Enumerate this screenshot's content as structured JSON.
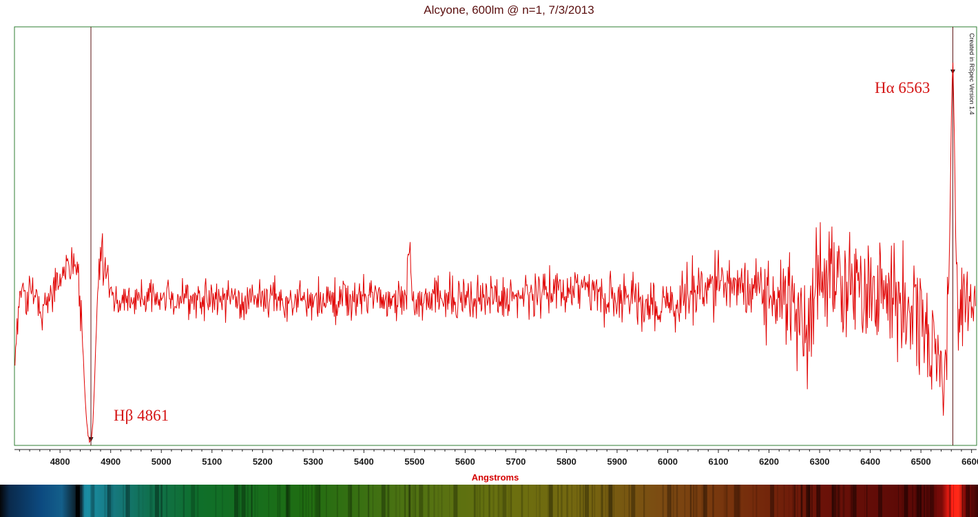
{
  "chart_data": {
    "type": "line",
    "title": "Alcyone, 600lm @ n=1, 7/3/2013",
    "xlabel": "Angstroms",
    "xlim": [
      4710,
      6610
    ],
    "ylim": [
      0,
      1
    ],
    "x_ticks": [
      4800,
      4900,
      5000,
      5100,
      5200,
      5300,
      5400,
      5500,
      5600,
      5700,
      5800,
      5900,
      6000,
      6100,
      6200,
      6300,
      6400,
      6500,
      6600
    ],
    "y_ticks_shown": false,
    "grid": false,
    "series": [
      {
        "color": "#e00000",
        "baseline_level": 0.355,
        "x": [
          4712,
          4720,
          4735,
          4750,
          4765,
          4780,
          4795,
          4810,
          4825,
          4835,
          4842,
          4848,
          4852,
          4856,
          4859,
          4861,
          4863,
          4866,
          4870,
          4874,
          4878,
          4882,
          4886,
          4890,
          4895,
          4900,
          4910,
          4925,
          4950,
          5000,
          5100,
          5200,
          5300,
          5400,
          5480,
          5487,
          5490,
          5494,
          5500,
          5600,
          5700,
          5800,
          5820,
          5900,
          6000,
          6050,
          6100,
          6150,
          6200,
          6262,
          6270,
          6280,
          6300,
          6350,
          6400,
          6450,
          6500,
          6520,
          6540,
          6548,
          6553,
          6557,
          6560,
          6563,
          6566,
          6569,
          6573,
          6578,
          6585,
          6595,
          6605
        ],
        "y": [
          0.22,
          0.36,
          0.35,
          0.37,
          0.32,
          0.36,
          0.39,
          0.42,
          0.44,
          0.42,
          0.3,
          0.15,
          0.06,
          0.02,
          0.01,
          0.01,
          0.02,
          0.08,
          0.22,
          0.36,
          0.42,
          0.47,
          0.42,
          0.39,
          0.39,
          0.37,
          0.35,
          0.34,
          0.35,
          0.35,
          0.35,
          0.35,
          0.34,
          0.35,
          0.35,
          0.4,
          0.45,
          0.39,
          0.36,
          0.35,
          0.35,
          0.37,
          0.38,
          0.35,
          0.33,
          0.37,
          0.38,
          0.38,
          0.37,
          0.3,
          0.24,
          0.31,
          0.43,
          0.39,
          0.37,
          0.36,
          0.3,
          0.27,
          0.18,
          0.16,
          0.3,
          0.5,
          0.78,
          0.93,
          0.74,
          0.46,
          0.36,
          0.33,
          0.34,
          0.3,
          0.35
        ],
        "noise_by_x": [
          [
            4710,
            0.03
          ],
          [
            4900,
            0.028
          ],
          [
            5500,
            0.032
          ],
          [
            5800,
            0.035
          ],
          [
            6000,
            0.04
          ],
          [
            6150,
            0.05
          ],
          [
            6260,
            0.075
          ],
          [
            6500,
            0.09
          ],
          [
            6610,
            0.06
          ]
        ]
      }
    ],
    "markers": [
      {
        "label": "Hβ 4861",
        "x": 4861,
        "label_anchor": "right"
      },
      {
        "label": "Hα 6563",
        "x": 6563,
        "label_anchor": "left"
      }
    ],
    "annotation_vertical": "Created in RSpec Version 1.4"
  },
  "colors": {
    "plot_border": "#2e7d32",
    "marker_line": "#5a1010",
    "trace": "#e00000",
    "title": "#5a0f0f",
    "xlabel": "#d40000"
  },
  "spectrum_strip": {
    "x_range": [
      4710,
      6610
    ],
    "gradient": [
      [
        4710,
        "#050608"
      ],
      [
        4728,
        "#0a2a4c"
      ],
      [
        4790,
        "#0c4a80"
      ],
      [
        4830,
        "#145f8a"
      ],
      [
        4856,
        "#0d2330"
      ],
      [
        4868,
        "#0e2a36"
      ],
      [
        4875,
        "#1b8fa6"
      ],
      [
        4930,
        "#16787f"
      ],
      [
        5000,
        "#10704e"
      ],
      [
        5100,
        "#0f6f2a"
      ],
      [
        5300,
        "#1f6d12"
      ],
      [
        5500,
        "#4e7212"
      ],
      [
        5700,
        "#6b700f"
      ],
      [
        5850,
        "#756510"
      ],
      [
        6000,
        "#7c4a12"
      ],
      [
        6150,
        "#77300c"
      ],
      [
        6300,
        "#6b1208"
      ],
      [
        6500,
        "#5a0806"
      ],
      [
        6540,
        "#7a0b08"
      ],
      [
        6555,
        "#ff1e14"
      ],
      [
        6572,
        "#ff2a18"
      ],
      [
        6585,
        "#8a0b08"
      ],
      [
        6610,
        "#3a0404"
      ]
    ],
    "dark_bands": [
      [
        4861,
        0.95
      ],
      [
        4890,
        0.25
      ],
      [
        4922,
        0.3
      ],
      [
        4958,
        0.3
      ],
      [
        5015,
        0.35
      ],
      [
        5085,
        0.2
      ],
      [
        5169,
        0.35
      ],
      [
        5183,
        0.3
      ],
      [
        5270,
        0.3
      ],
      [
        5328,
        0.25
      ],
      [
        5390,
        0.25
      ],
      [
        5455,
        0.3
      ],
      [
        5528,
        0.25
      ],
      [
        5595,
        0.3
      ],
      [
        5690,
        0.25
      ],
      [
        5780,
        0.35
      ],
      [
        5850,
        0.3
      ],
      [
        5896,
        0.4
      ],
      [
        5940,
        0.3
      ],
      [
        6010,
        0.3
      ],
      [
        6080,
        0.35
      ],
      [
        6140,
        0.3
      ],
      [
        6210,
        0.35
      ],
      [
        6280,
        0.5
      ],
      [
        6300,
        0.45
      ],
      [
        6330,
        0.4
      ],
      [
        6370,
        0.45
      ],
      [
        6420,
        0.4
      ],
      [
        6470,
        0.45
      ],
      [
        6495,
        0.4
      ],
      [
        6520,
        0.4
      ],
      [
        6590,
        0.45
      ]
    ]
  }
}
